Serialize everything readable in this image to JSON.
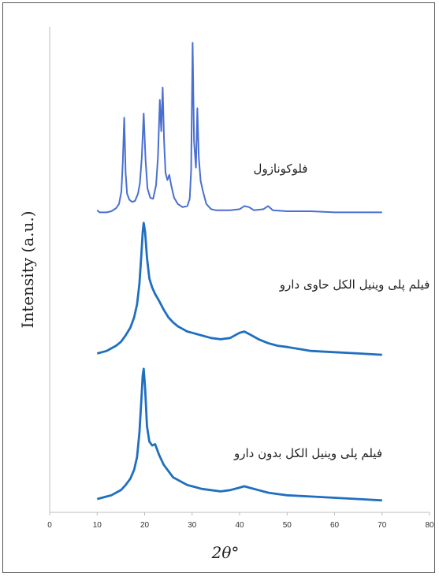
{
  "chart_data": {
    "type": "line",
    "title": "",
    "xlabel": "2θ°",
    "ylabel": "Intensity (a.u.)",
    "xlim": [
      0,
      80
    ],
    "x_ticks": [
      "0",
      "10",
      "20",
      "30",
      "40",
      "50",
      "60",
      "70",
      "80"
    ],
    "grid": false,
    "legend": "none",
    "y_ticks": "none",
    "series": [
      {
        "name": "فلوکونازول",
        "color": "#4a6fd0",
        "points": [
          [
            10,
            0.04
          ],
          [
            10.5,
            0.02
          ],
          [
            11,
            0.02
          ],
          [
            12,
            0.02
          ],
          [
            13,
            0.03
          ],
          [
            14,
            0.06
          ],
          [
            14.6,
            0.1
          ],
          [
            15.1,
            0.22
          ],
          [
            15.4,
            0.5
          ],
          [
            15.7,
            0.93
          ],
          [
            16,
            0.4
          ],
          [
            16.3,
            0.2
          ],
          [
            16.8,
            0.14
          ],
          [
            17.4,
            0.12
          ],
          [
            18,
            0.13
          ],
          [
            18.6,
            0.2
          ],
          [
            19,
            0.3
          ],
          [
            19.4,
            0.55
          ],
          [
            19.8,
            0.97
          ],
          [
            20.2,
            0.52
          ],
          [
            20.6,
            0.25
          ],
          [
            21.2,
            0.16
          ],
          [
            21.8,
            0.15
          ],
          [
            22.4,
            0.28
          ],
          [
            22.8,
            0.55
          ],
          [
            23.2,
            1.1
          ],
          [
            23.5,
            0.8
          ],
          [
            23.8,
            1.22
          ],
          [
            24.1,
            0.7
          ],
          [
            24.4,
            0.4
          ],
          [
            24.8,
            0.33
          ],
          [
            25.2,
            0.38
          ],
          [
            25.6,
            0.28
          ],
          [
            26.2,
            0.16
          ],
          [
            27,
            0.1
          ],
          [
            28,
            0.07
          ],
          [
            29,
            0.08
          ],
          [
            29.5,
            0.15
          ],
          [
            29.8,
            0.42
          ],
          [
            30.1,
            1.65
          ],
          [
            30.4,
            0.7
          ],
          [
            30.8,
            0.45
          ],
          [
            31.1,
            1.02
          ],
          [
            31.4,
            0.55
          ],
          [
            31.8,
            0.32
          ],
          [
            32.3,
            0.22
          ],
          [
            33,
            0.1
          ],
          [
            34,
            0.05
          ],
          [
            35,
            0.04
          ],
          [
            36,
            0.04
          ],
          [
            38,
            0.04
          ],
          [
            40,
            0.05
          ],
          [
            41,
            0.08
          ],
          [
            42,
            0.07
          ],
          [
            43,
            0.04
          ],
          [
            45,
            0.05
          ],
          [
            46,
            0.08
          ],
          [
            47,
            0.04
          ],
          [
            50,
            0.03
          ],
          [
            55,
            0.03
          ],
          [
            60,
            0.02
          ],
          [
            65,
            0.02
          ],
          [
            70,
            0.02
          ]
        ]
      },
      {
        "name": "فیلم پلی وینیل الکل حاوی دارو",
        "color": "#1f6fc0",
        "points": [
          [
            10,
            0.04
          ],
          [
            11,
            0.05
          ],
          [
            12,
            0.06
          ],
          [
            13,
            0.08
          ],
          [
            14,
            0.1
          ],
          [
            15,
            0.13
          ],
          [
            16,
            0.18
          ],
          [
            17,
            0.24
          ],
          [
            17.8,
            0.32
          ],
          [
            18.4,
            0.42
          ],
          [
            18.9,
            0.58
          ],
          [
            19.3,
            0.8
          ],
          [
            19.6,
            0.98
          ],
          [
            19.8,
            1.05
          ],
          [
            20.1,
            0.98
          ],
          [
            20.5,
            0.78
          ],
          [
            21,
            0.62
          ],
          [
            21.6,
            0.55
          ],
          [
            22.2,
            0.5
          ],
          [
            23,
            0.45
          ],
          [
            24,
            0.38
          ],
          [
            25,
            0.32
          ],
          [
            26,
            0.28
          ],
          [
            27,
            0.25
          ],
          [
            28,
            0.23
          ],
          [
            29,
            0.21
          ],
          [
            30,
            0.2
          ],
          [
            32,
            0.18
          ],
          [
            34,
            0.16
          ],
          [
            36,
            0.15
          ],
          [
            38,
            0.16
          ],
          [
            40,
            0.2
          ],
          [
            41,
            0.21
          ],
          [
            42,
            0.19
          ],
          [
            44,
            0.15
          ],
          [
            46,
            0.12
          ],
          [
            48,
            0.1
          ],
          [
            50,
            0.09
          ],
          [
            55,
            0.06
          ],
          [
            60,
            0.05
          ],
          [
            65,
            0.04
          ],
          [
            70,
            0.03
          ]
        ]
      },
      {
        "name": "فیلم پلی وینیل الکل بدون دارو",
        "color": "#1f6fc0",
        "points": [
          [
            10,
            0.03
          ],
          [
            11,
            0.04
          ],
          [
            12,
            0.05
          ],
          [
            13,
            0.06
          ],
          [
            14,
            0.08
          ],
          [
            15,
            0.1
          ],
          [
            16,
            0.14
          ],
          [
            17,
            0.19
          ],
          [
            17.8,
            0.26
          ],
          [
            18.4,
            0.36
          ],
          [
            18.9,
            0.55
          ],
          [
            19.3,
            0.8
          ],
          [
            19.6,
            1.0
          ],
          [
            19.8,
            1.05
          ],
          [
            20.1,
            0.9
          ],
          [
            20.5,
            0.6
          ],
          [
            21,
            0.48
          ],
          [
            21.6,
            0.45
          ],
          [
            22.2,
            0.46
          ],
          [
            23,
            0.38
          ],
          [
            24,
            0.3
          ],
          [
            25,
            0.25
          ],
          [
            26,
            0.2
          ],
          [
            27,
            0.18
          ],
          [
            28,
            0.16
          ],
          [
            29,
            0.14
          ],
          [
            30,
            0.13
          ],
          [
            32,
            0.11
          ],
          [
            34,
            0.1
          ],
          [
            36,
            0.09
          ],
          [
            38,
            0.1
          ],
          [
            40,
            0.12
          ],
          [
            41,
            0.13
          ],
          [
            42,
            0.12
          ],
          [
            44,
            0.1
          ],
          [
            46,
            0.08
          ],
          [
            48,
            0.07
          ],
          [
            50,
            0.06
          ],
          [
            55,
            0.05
          ],
          [
            60,
            0.04
          ],
          [
            65,
            0.03
          ],
          [
            70,
            0.02
          ]
        ]
      }
    ]
  }
}
